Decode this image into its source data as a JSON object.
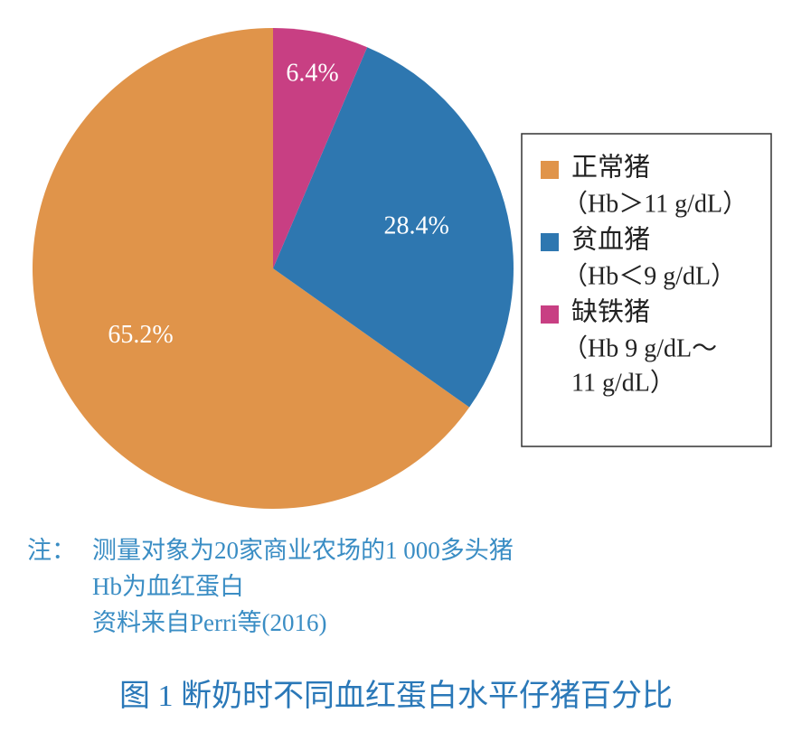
{
  "chart_data": {
    "type": "pie",
    "categories": [
      "正常猪",
      "贫血猪",
      "缺铁猪"
    ],
    "category_notes": [
      [
        "（Hb＞11 g/dL）"
      ],
      [
        "（Hb＜9 g/dL）"
      ],
      [
        "（Hb  9 g/dL～",
        "11 g/dL）"
      ]
    ],
    "values": [
      65.2,
      28.4,
      6.4
    ],
    "value_labels": [
      "65.2%",
      "28.4%",
      "6.4%"
    ],
    "colors": [
      "#e0944a",
      "#2e77b0",
      "#c83f83"
    ],
    "legend": "right"
  },
  "notes": {
    "prefix": "注：",
    "lines": [
      "测量对象为20家商业农场的1 000多头猪",
      "Hb为血红蛋白",
      "资料来自Perri等(2016)"
    ]
  },
  "caption": "图 1  断奶时不同血红蛋白水平仔猪百分比"
}
